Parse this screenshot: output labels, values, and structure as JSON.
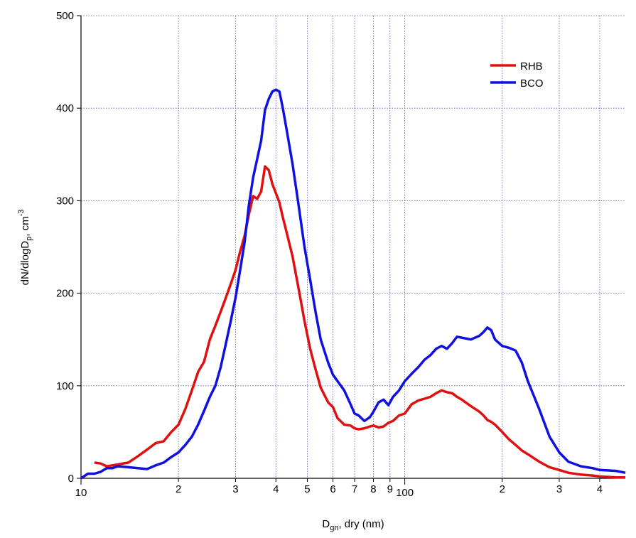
{
  "chart_data": {
    "type": "line",
    "ylabel": [
      "dN/dlogD",
      "p",
      ", cm",
      "-3"
    ],
    "xlabel": [
      "D",
      "gn",
      ", dry (nm)"
    ],
    "log_x": true,
    "grid": true,
    "legend": "upper right",
    "xlim": [
      10,
      480
    ],
    "ylim": [
      0,
      500
    ],
    "yticks": [
      0,
      100,
      200,
      300,
      400,
      500
    ],
    "xticks": [
      10,
      {
        "value": 20,
        "label": "2"
      },
      {
        "value": 30,
        "label": "3"
      },
      {
        "value": 40,
        "label": "4"
      },
      {
        "value": 50,
        "label": "5"
      },
      {
        "value": 60,
        "label": "6"
      },
      {
        "value": 70,
        "label": "7"
      },
      {
        "value": 80,
        "label": "8"
      },
      {
        "value": 90,
        "label": "9"
      },
      100,
      {
        "value": 200,
        "label": "2"
      },
      {
        "value": 300,
        "label": "3"
      },
      {
        "value": 400,
        "label": "4"
      }
    ],
    "x": [
      10,
      10.5,
      11,
      11.5,
      12,
      12.5,
      13,
      14,
      15,
      16,
      17,
      18,
      19,
      20,
      21,
      22,
      23,
      24,
      25,
      26,
      27,
      28,
      29,
      30,
      31,
      32,
      33,
      34,
      35,
      36,
      37,
      38,
      39,
      40,
      41,
      42,
      43,
      45,
      47,
      49,
      51,
      53,
      55,
      58,
      60,
      62,
      65,
      68,
      70,
      72,
      75,
      78,
      80,
      83,
      86,
      89,
      92,
      96,
      100,
      105,
      110,
      115,
      120,
      125,
      130,
      135,
      140,
      145,
      150,
      160,
      170,
      175,
      180,
      185,
      190,
      200,
      210,
      220,
      230,
      240,
      260,
      280,
      300,
      320,
      350,
      380,
      400,
      450,
      480
    ],
    "series": [
      {
        "name": "RHB",
        "color": "#e01010",
        "values": [
          null,
          null,
          17,
          16,
          13,
          14,
          15,
          17,
          24,
          31,
          38,
          40,
          50,
          58,
          75,
          95,
          115,
          126,
          150,
          165,
          180,
          195,
          210,
          225,
          245,
          262,
          285,
          305,
          302,
          310,
          337,
          333,
          318,
          308,
          298,
          282,
          268,
          240,
          205,
          170,
          140,
          118,
          98,
          82,
          77,
          65,
          58,
          57,
          54,
          53,
          54,
          56,
          57,
          55,
          56,
          60,
          62,
          68,
          70,
          80,
          84,
          86,
          88,
          92,
          95,
          93,
          92,
          88,
          85,
          78,
          72,
          68,
          63,
          61,
          58,
          50,
          42,
          36,
          30,
          26,
          18,
          12,
          9,
          6,
          4,
          3,
          2,
          1,
          1
        ]
      },
      {
        "name": "BCO",
        "color": "#1010e0",
        "values": [
          0,
          5,
          5,
          7,
          11,
          11,
          13,
          12,
          11,
          10,
          14,
          17,
          23,
          28,
          36,
          45,
          58,
          73,
          88,
          100,
          120,
          145,
          170,
          195,
          225,
          255,
          295,
          325,
          345,
          365,
          398,
          410,
          418,
          420,
          418,
          400,
          380,
          340,
          295,
          250,
          215,
          180,
          150,
          125,
          112,
          105,
          95,
          80,
          70,
          68,
          62,
          66,
          72,
          82,
          85,
          79,
          88,
          95,
          105,
          113,
          120,
          128,
          133,
          140,
          143,
          140,
          146,
          153,
          152,
          150,
          154,
          158,
          163,
          160,
          150,
          143,
          141,
          138,
          125,
          105,
          75,
          45,
          28,
          18,
          13,
          11,
          9,
          8,
          6
        ]
      }
    ]
  }
}
